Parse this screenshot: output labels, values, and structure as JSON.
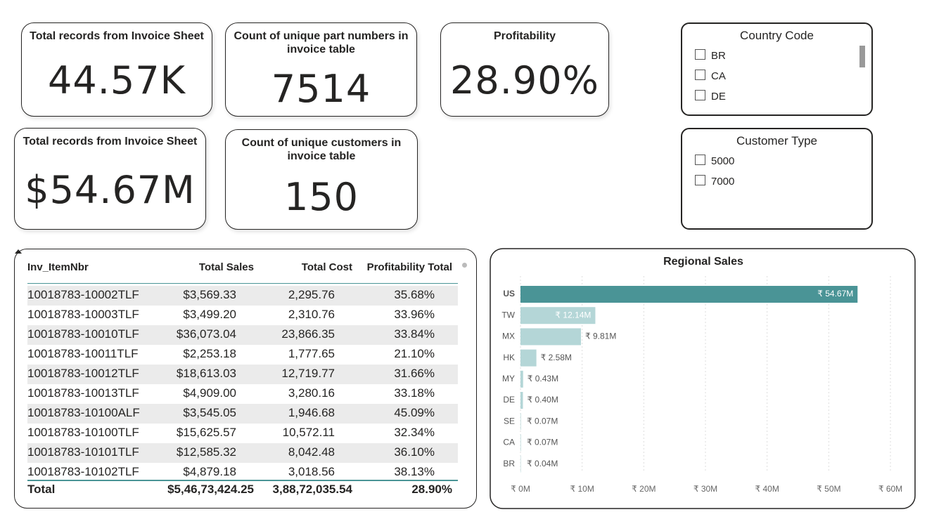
{
  "cards": [
    {
      "title": "Total records from Invoice Sheet",
      "value": "44.57K"
    },
    {
      "title": "Count of unique part numbers in invoice table",
      "value": "7514"
    },
    {
      "title": "Profitability",
      "value": "28.90%"
    },
    {
      "title": "Total records from Invoice Sheet",
      "value": "$54.67M"
    },
    {
      "title": "Count of unique customers in invoice table",
      "value": "150"
    }
  ],
  "slicers": [
    {
      "title": "Country Code",
      "items": [
        "BR",
        "CA",
        "DE"
      ]
    },
    {
      "title": "Customer Type",
      "items": [
        "5000",
        "7000"
      ]
    }
  ],
  "table": {
    "header": [
      "Inv_ItemNbr",
      "Total Sales",
      "Total Cost",
      "Profitability Total"
    ],
    "rows": [
      [
        "10018783-10002TLF",
        "$3,569.33",
        "2,295.76",
        "35.68%"
      ],
      [
        "10018783-10003TLF",
        "$3,499.20",
        "2,310.76",
        "33.96%"
      ],
      [
        "10018783-10010TLF",
        "$36,073.04",
        "23,866.35",
        "33.84%"
      ],
      [
        "10018783-10011TLF",
        "$2,253.18",
        "1,777.65",
        "21.10%"
      ],
      [
        "10018783-10012TLF",
        "$18,613.03",
        "12,719.77",
        "31.66%"
      ],
      [
        "10018783-10013TLF",
        "$4,909.00",
        "3,280.16",
        "33.18%"
      ],
      [
        "10018783-10100ALF",
        "$3,545.05",
        "1,946.68",
        "45.09%"
      ],
      [
        "10018783-10100TLF",
        "$15,625.57",
        "10,572.11",
        "32.34%"
      ],
      [
        "10018783-10101TLF",
        "$12,585.32",
        "8,042.48",
        "36.10%"
      ],
      [
        "10018783-10102TLF",
        "$4,879.18",
        "3,018.56",
        "38.13%"
      ]
    ],
    "total": [
      "Total",
      "$5,46,73,424.25",
      "3,88,72,035.54",
      "28.90%"
    ]
  },
  "chart_data": {
    "type": "hbar",
    "title": "Regional Sales",
    "categories": [
      "US",
      "TW",
      "MX",
      "HK",
      "MY",
      "DE",
      "SE",
      "CA",
      "BR"
    ],
    "values": [
      54.67,
      12.14,
      9.81,
      2.58,
      0.43,
      0.4,
      0.07,
      0.07,
      0.04
    ],
    "value_labels": [
      "₹ 54.67M",
      "₹ 12.14M",
      "₹ 9.81M",
      "₹ 2.58M",
      "₹ 0.43M",
      "₹ 0.40M",
      "₹ 0.07M",
      "₹ 0.07M",
      "₹ 0.04M"
    ],
    "bar_colors": [
      "#4a9496",
      "#b4d6d7",
      "#b4d6d7",
      "#b4d6d7",
      "#b4d6d7",
      "#b4d6d7",
      "#b4d6d7",
      "#b4d6d7",
      "#b4d6d7"
    ],
    "xlim": [
      0,
      60
    ],
    "xticks": [
      {
        "value": 0,
        "label": "₹ 0M"
      },
      {
        "value": 10,
        "label": "₹ 10M"
      },
      {
        "value": 20,
        "label": "₹ 20M"
      },
      {
        "value": 30,
        "label": "₹ 30M"
      },
      {
        "value": 40,
        "label": "₹ 40M"
      },
      {
        "value": 50,
        "label": "₹ 50M"
      },
      {
        "value": 60,
        "label": "₹ 60M"
      }
    ],
    "grid": true
  }
}
